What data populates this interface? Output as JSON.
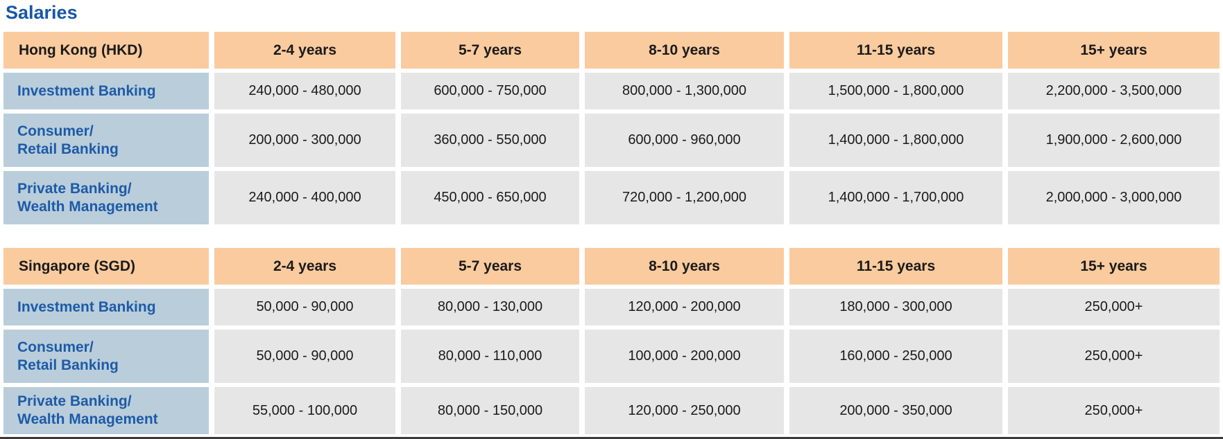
{
  "page": {
    "title": "Salaries"
  },
  "colors": {
    "header_bg": "#FACB9E",
    "row_label_bg": "#B9CEDA",
    "value_cell_bg": "#E6E6E7",
    "title_text": "#1757A6",
    "row_label_text": "#1E5AA8",
    "bottom_line": "#3A3A3A"
  },
  "tables": [
    {
      "region_header": "Hong Kong (HKD)",
      "columns": [
        "2-4 years",
        "5-7 years",
        "8-10 years",
        "11-15 years",
        "15+ years"
      ],
      "rows": [
        {
          "label": "Investment Banking",
          "values": [
            "240,000 - 480,000",
            "600,000 - 750,000",
            "800,000 - 1,300,000",
            "1,500,000 - 1,800,000",
            "2,200,000 - 3,500,000"
          ]
        },
        {
          "label": "Consumer/\nRetail Banking",
          "values": [
            "200,000 - 300,000",
            "360,000 - 550,000",
            "600,000 - 960,000",
            "1,400,000 - 1,800,000",
            "1,900,000 - 2,600,000"
          ]
        },
        {
          "label": "Private Banking/\nWealth Management",
          "values": [
            "240,000 - 400,000",
            "450,000 - 650,000",
            "720,000 - 1,200,000",
            "1,400,000 - 1,700,000",
            "2,000,000 - 3,000,000"
          ]
        }
      ]
    },
    {
      "region_header": "Singapore (SGD)",
      "columns": [
        "2-4 years",
        "5-7 years",
        "8-10 years",
        "11-15 years",
        "15+ years"
      ],
      "rows": [
        {
          "label": "Investment Banking",
          "values": [
            "50,000 - 90,000",
            "80,000 - 130,000",
            "120,000 - 200,000",
            "180,000 - 300,000",
            "250,000+"
          ]
        },
        {
          "label": "Consumer/\nRetail Banking",
          "values": [
            "50,000 - 90,000",
            "80,000 - 110,000",
            "100,000 - 200,000",
            "160,000 - 250,000",
            "250,000+"
          ]
        },
        {
          "label": "Private Banking/\nWealth Management",
          "values": [
            "55,000 - 100,000",
            "80,000 - 150,000",
            "120,000 - 250,000",
            "200,000 - 350,000",
            "250,000+"
          ]
        }
      ]
    }
  ]
}
